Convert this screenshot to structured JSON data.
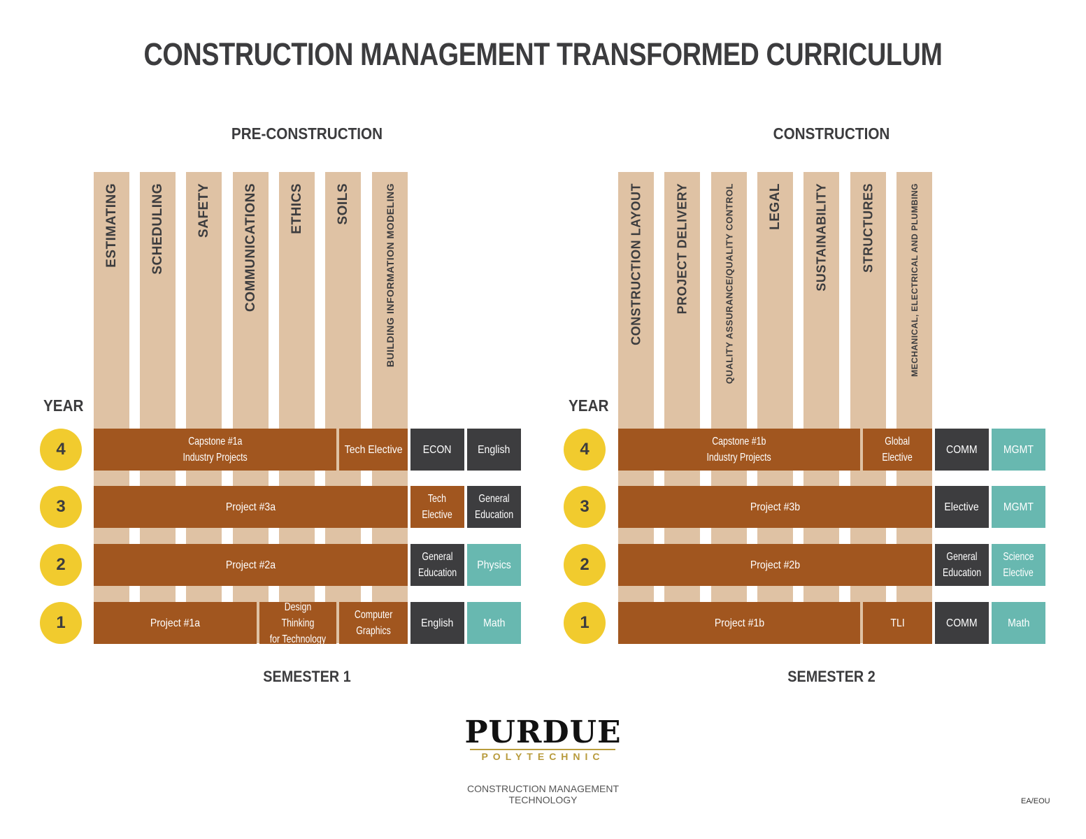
{
  "title": "CONSTRUCTION MANAGEMENT TRANSFORMED CURRICULUM",
  "sections": {
    "left": "PRE-CONSTRUCTION",
    "right": "CONSTRUCTION"
  },
  "year_label": "YEAR",
  "semesters": {
    "left": "SEMESTER 1",
    "right": "SEMESTER 2"
  },
  "years": [
    "4",
    "3",
    "2",
    "1"
  ],
  "pre_construction_topics": [
    "ESTIMATING",
    "SCHEDULING",
    "SAFETY",
    "COMMUNICATIONS",
    "ETHICS",
    "SOILS",
    "BUILDING INFORMATION MODELING"
  ],
  "construction_topics": [
    "CONSTRUCTION LAYOUT",
    "PROJECT DELIVERY",
    "QUALITY ASSURANCE/QUALITY CONTROL",
    "LEGAL",
    "SUSTAINABILITY",
    "STRUCTURES",
    "MECHANICAL, ELECTRICAL AND PLUMBING"
  ],
  "semester1": {
    "year4": {
      "capstone": "Capstone #1a",
      "capstone_sub": "Industry Projects",
      "tech_elective": "Tech Elective",
      "econ": "ECON",
      "english": "English"
    },
    "year3": {
      "project": "Project #3a",
      "tech": "Tech",
      "elective": "Elective",
      "general": "General",
      "education": "Education"
    },
    "year2": {
      "project": "Project #2a",
      "general": "General",
      "education": "Education",
      "physics": "Physics"
    },
    "year1": {
      "project": "Project #1a",
      "design": "Design Thinking",
      "design_sub": "for Technology",
      "computer": "Computer",
      "graphics": "Graphics",
      "english": "English",
      "math": "Math"
    }
  },
  "semester2": {
    "year4": {
      "capstone": "Capstone #1b",
      "capstone_sub": "Industry Projects",
      "global": "Global",
      "elective": "Elective",
      "comm": "COMM",
      "mgmt": "MGMT"
    },
    "year3": {
      "project": "Project #3b",
      "elective": "Elective",
      "mgmt": "MGMT"
    },
    "year2": {
      "project": "Project #2b",
      "general": "General",
      "education": "Education",
      "science": "Science",
      "science_elective": "Elective"
    },
    "year1": {
      "project": "Project #1b",
      "tli": "TLI",
      "comm": "COMM",
      "math": "Math"
    }
  },
  "logo": {
    "name": "PURDUE",
    "sub": "POLYTECHNIC"
  },
  "department": {
    "line1": "CONSTRUCTION MANAGEMENT",
    "line2": "TECHNOLOGY"
  },
  "code": "EA/EOU",
  "colors": {
    "column": "#dfc2a4",
    "bar": "#a1561f",
    "dark": "#3d3d3f",
    "teal": "#68b8b0",
    "year_circle": "#f1cb2e"
  }
}
